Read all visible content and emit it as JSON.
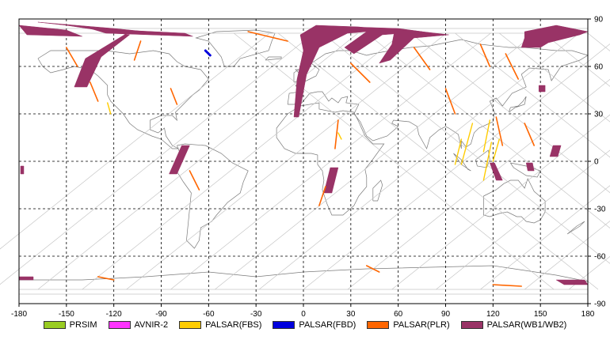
{
  "chart_data": {
    "type": "map",
    "projection": "equirectangular",
    "xlim": [
      -180,
      180
    ],
    "ylim": [
      -90,
      90
    ],
    "x_ticks": [
      -180,
      -150,
      -120,
      -90,
      -60,
      -30,
      0,
      30,
      60,
      90,
      120,
      150,
      180
    ],
    "y_ticks": [
      90,
      60,
      30,
      0,
      -30,
      -60,
      -90
    ],
    "grid": true,
    "legend_placement": "bottom",
    "legend": [
      {
        "name": "PRSIM",
        "color": "#99cc22"
      },
      {
        "name": "AVNIR-2",
        "color": "#ff33ff"
      },
      {
        "name": "PALSAR(FBS)",
        "color": "#ffcc00"
      },
      {
        "name": "PALSAR(FBD)",
        "color": "#0000dd"
      },
      {
        "name": "PALSAR(PLR)",
        "color": "#ff6600"
      },
      {
        "name": "PALSAR(WB1/WB2)",
        "color": "#993366"
      }
    ],
    "wb_swaths": [
      {
        "coords": [
          [
            -168,
            88
          ],
          [
            -120,
            84
          ],
          [
            -80,
            80
          ],
          [
            -110,
            82
          ],
          [
            -138,
            65
          ],
          [
            -145,
            47
          ],
          [
            -137,
            47
          ],
          [
            -128,
            66
          ],
          [
            -110,
            80
          ],
          [
            -150,
            86
          ]
        ]
      },
      {
        "coords": [
          [
            -180,
            86
          ],
          [
            -150,
            83
          ],
          [
            -140,
            79
          ],
          [
            -175,
            80
          ]
        ]
      },
      {
        "coords": [
          [
            -135,
            84
          ],
          [
            -75,
            81
          ],
          [
            -70,
            79
          ],
          [
            -125,
            81
          ]
        ]
      },
      {
        "coords": [
          [
            8,
            86
          ],
          [
            35,
            85
          ],
          [
            52,
            83
          ],
          [
            28,
            81
          ],
          [
            10,
            72
          ],
          [
            2,
            55
          ],
          [
            -3,
            28
          ],
          [
            -6,
            28
          ],
          [
            -4,
            52
          ],
          [
            0,
            70
          ],
          [
            -2,
            80
          ]
        ]
      },
      {
        "coords": [
          [
            30,
            85
          ],
          [
            60,
            84
          ],
          [
            75,
            82
          ],
          [
            50,
            80
          ],
          [
            38,
            72
          ],
          [
            32,
            68
          ],
          [
            26,
            72
          ],
          [
            40,
            82
          ]
        ]
      },
      {
        "coords": [
          [
            58,
            84
          ],
          [
            75,
            82
          ],
          [
            92,
            80
          ],
          [
            70,
            78
          ],
          [
            55,
            64
          ],
          [
            48,
            62
          ],
          [
            56,
            74
          ]
        ]
      },
      {
        "coords": [
          [
            140,
            82
          ],
          [
            160,
            86
          ],
          [
            180,
            82
          ],
          [
            175,
            80
          ],
          [
            155,
            75
          ],
          [
            150,
            72
          ],
          [
            138,
            72
          ],
          [
            140,
            78
          ]
        ]
      },
      {
        "coords": [
          [
            -77,
            10
          ],
          [
            -72,
            10
          ],
          [
            -80,
            -8
          ],
          [
            -85,
            -8
          ]
        ]
      },
      {
        "coords": [
          [
            17,
            -4
          ],
          [
            22,
            -4
          ],
          [
            18,
            -20
          ],
          [
            13,
            -20
          ]
        ]
      },
      {
        "coords": [
          [
            118,
            -1
          ],
          [
            121,
            -1
          ],
          [
            126,
            -12
          ],
          [
            122,
            -12
          ]
        ]
      },
      {
        "coords": [
          [
            141,
            -1
          ],
          [
            145,
            -1
          ],
          [
            146,
            -6
          ],
          [
            142,
            -6
          ]
        ]
      },
      {
        "coords": [
          [
            158,
            10
          ],
          [
            163,
            10
          ],
          [
            161,
            3
          ],
          [
            156,
            3
          ]
        ]
      },
      {
        "coords": [
          [
            149,
            48
          ],
          [
            153,
            48
          ],
          [
            153,
            44
          ],
          [
            149,
            44
          ]
        ]
      },
      {
        "coords": [
          [
            -179,
            -3
          ],
          [
            -177,
            -3
          ],
          [
            -177,
            -8
          ],
          [
            -179,
            -8
          ]
        ]
      },
      {
        "coords": [
          [
            -180,
            -73
          ],
          [
            -171,
            -73
          ],
          [
            -171,
            -75
          ],
          [
            -180,
            -75
          ]
        ]
      },
      {
        "coords": [
          [
            160,
            -75
          ],
          [
            178,
            -75
          ],
          [
            180,
            -78
          ],
          [
            165,
            -78
          ]
        ]
      }
    ],
    "plr_strips": [
      {
        "coords": [
          [
            -150,
            72
          ],
          [
            -143,
            60
          ]
        ]
      },
      {
        "coords": [
          [
            -135,
            50
          ],
          [
            -130,
            38
          ]
        ]
      },
      {
        "coords": [
          [
            -103,
            76
          ],
          [
            -107,
            64
          ]
        ]
      },
      {
        "coords": [
          [
            -84,
            46
          ],
          [
            -80,
            36
          ]
        ]
      },
      {
        "coords": [
          [
            -72,
            -6
          ],
          [
            -66,
            -18
          ]
        ]
      },
      {
        "coords": [
          [
            -35,
            82
          ],
          [
            -10,
            76
          ]
        ]
      },
      {
        "coords": [
          [
            22,
            26
          ],
          [
            20,
            8
          ]
        ]
      },
      {
        "coords": [
          [
            14,
            -16
          ],
          [
            10,
            -28
          ]
        ]
      },
      {
        "coords": [
          [
            30,
            62
          ],
          [
            42,
            50
          ]
        ]
      },
      {
        "coords": [
          [
            70,
            72
          ],
          [
            80,
            58
          ]
        ]
      },
      {
        "coords": [
          [
            90,
            46
          ],
          [
            96,
            30
          ]
        ]
      },
      {
        "coords": [
          [
            112,
            74
          ],
          [
            118,
            60
          ]
        ]
      },
      {
        "coords": [
          [
            122,
            28
          ],
          [
            126,
            10
          ]
        ]
      },
      {
        "coords": [
          [
            128,
            68
          ],
          [
            136,
            52
          ]
        ]
      },
      {
        "coords": [
          [
            140,
            24
          ],
          [
            146,
            10
          ]
        ]
      },
      {
        "coords": [
          [
            -130,
            -73
          ],
          [
            -120,
            -75
          ]
        ]
      },
      {
        "coords": [
          [
            40,
            -66
          ],
          [
            48,
            -70
          ]
        ]
      },
      {
        "coords": [
          [
            120,
            -78
          ],
          [
            138,
            -79
          ]
        ]
      }
    ],
    "fbs_strips": [
      {
        "coords": [
          [
            -124,
            37
          ],
          [
            -122,
            30
          ]
        ]
      },
      {
        "coords": [
          [
            22,
            18
          ],
          [
            24,
            14
          ]
        ]
      },
      {
        "coords": [
          [
            100,
            14
          ],
          [
            96,
            -2
          ]
        ]
      },
      {
        "coords": [
          [
            107,
            24
          ],
          [
            100,
            -2
          ]
        ]
      },
      {
        "coords": [
          [
            118,
            26
          ],
          [
            114,
            6
          ]
        ]
      },
      {
        "coords": [
          [
            119,
            12
          ],
          [
            114,
            -12
          ]
        ]
      },
      {
        "coords": [
          [
            124,
            14
          ],
          [
            120,
            0
          ]
        ]
      }
    ],
    "fbd_strips": [
      {
        "coords": [
          [
            -62,
            70
          ],
          [
            -59,
            67
          ]
        ]
      }
    ]
  }
}
